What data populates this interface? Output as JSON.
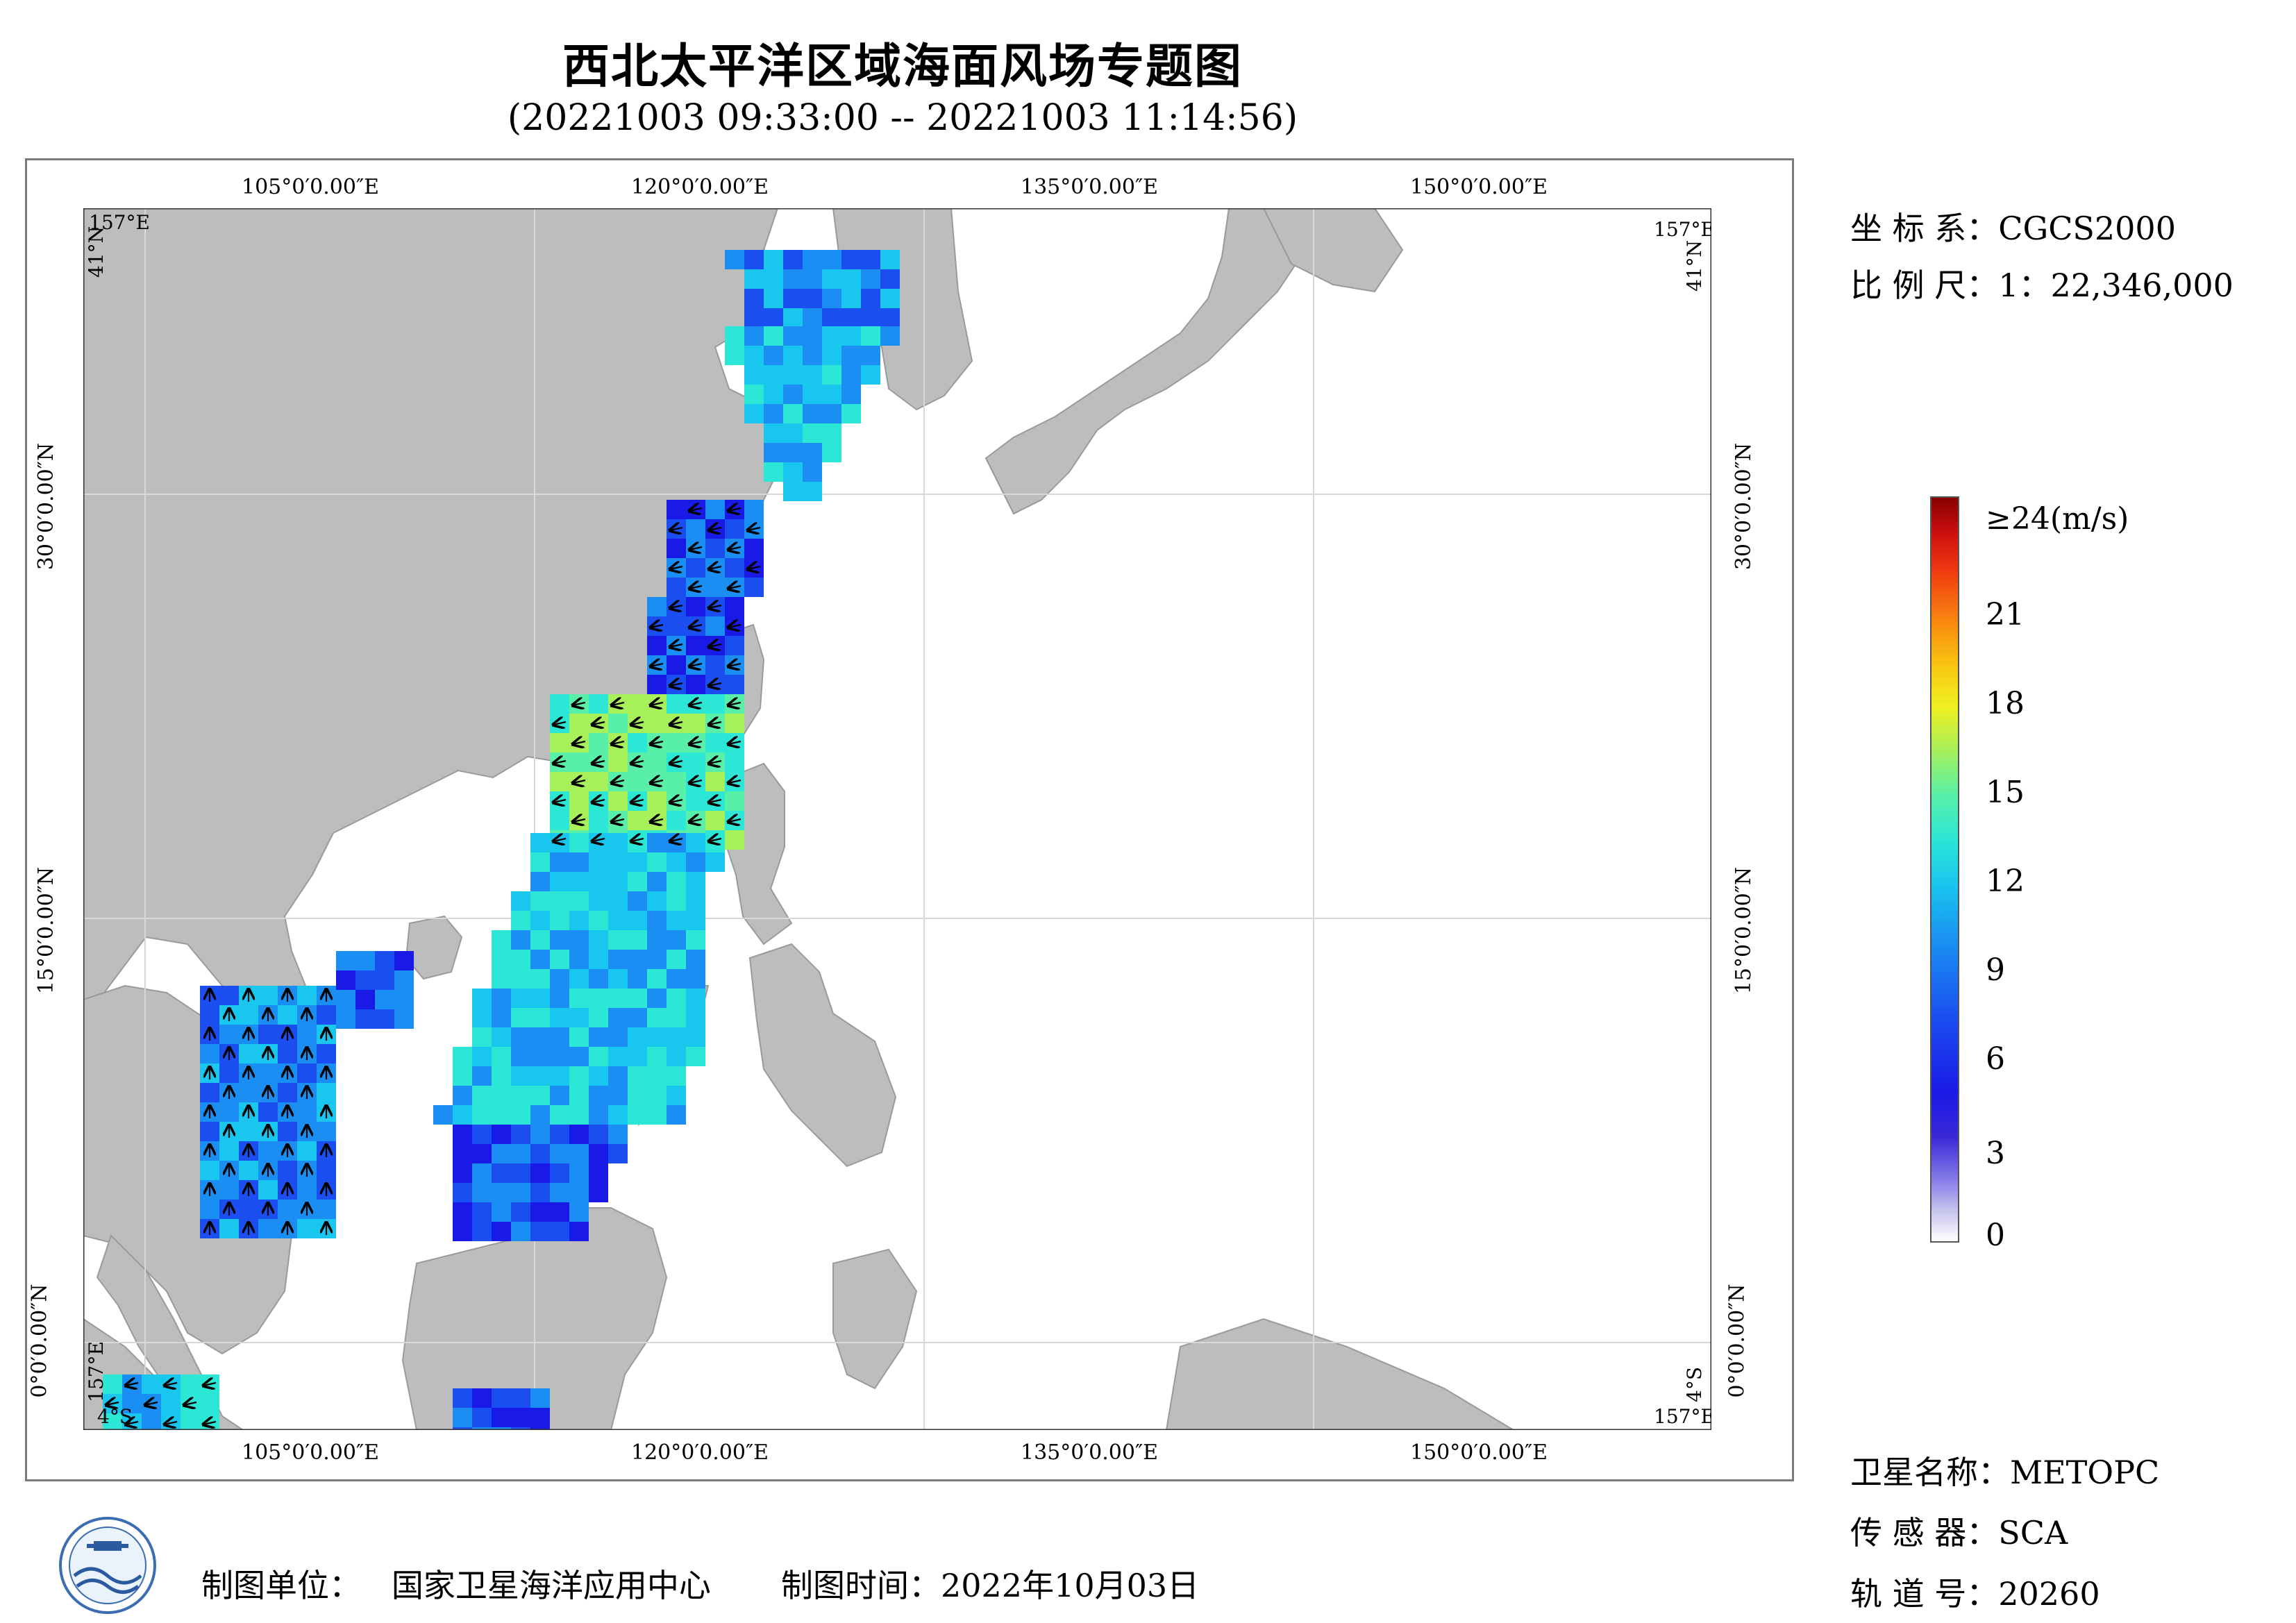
{
  "title": "西北太平洋区域海面风场专题图",
  "subtitle": "(20221003 09:33:00 -- 20221003 11:14:56)",
  "info": {
    "crs_label": "坐 标 系：",
    "crs_value": "CGCS2000",
    "scale_label": "比 例 尺：",
    "scale_value": "1：22,346,000",
    "satellite_label": "卫星名称：",
    "satellite_value": "METOPC",
    "sensor_label": "传 感 器：",
    "sensor_value": "SCA",
    "orbit_label": "轨 道 号：",
    "orbit_value": "20260"
  },
  "legend": {
    "ticks": [
      "≥24(m/s)",
      "21",
      "18",
      "15",
      "12",
      "9",
      "6",
      "3",
      "0"
    ],
    "tick_values": [
      24,
      21,
      18,
      15,
      12,
      9,
      6,
      3,
      0
    ]
  },
  "map": {
    "lon_labels": [
      "105°0′0.00″E",
      "120°0′0.00″E",
      "135°0′0.00″E",
      "150°0′0.00″E"
    ],
    "lat_labels": [
      "30°0′0.00″N",
      "15°0′0.00″N",
      "0°0′0.00″N"
    ],
    "corner_tl_lon": "157°E",
    "corner_tl_lat": "41°N",
    "corner_tr_lon": "157°E",
    "corner_tr_lat": "41°N",
    "corner_bl_lon": "157°E",
    "corner_bl_lat": "4°S",
    "corner_br_lon": "157°E",
    "corner_br_lat": "4°S",
    "colors": {
      "land": "#bdbdbd",
      "sea": "#ffffff",
      "wind_low": "#1a1ae6",
      "wind_mid": "#19c6ee",
      "wind_high": "#f0f020"
    }
  },
  "footer": {
    "unit_label": "制图单位：",
    "unit_value": "国家卫星海洋应用中心",
    "time_label": "制图时间：",
    "time_value": "2022年10月03日"
  }
}
